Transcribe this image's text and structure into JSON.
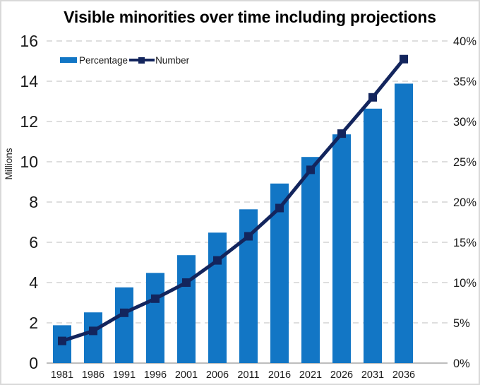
{
  "chart_data": {
    "type": "bar-line-combo",
    "title": "Visible minorities over time including projections",
    "categories": [
      "1981",
      "1986",
      "1991",
      "1996",
      "2001",
      "2006",
      "2011",
      "2016",
      "2021",
      "2026",
      "2031",
      "2036"
    ],
    "series": [
      {
        "name": "Percentage",
        "type": "bar",
        "axis": "right",
        "unit": "percent",
        "values": [
          4.7,
          6.3,
          9.4,
          11.2,
          13.4,
          16.2,
          19.1,
          22.3,
          25.6,
          28.4,
          31.6,
          34.7
        ]
      },
      {
        "name": "Number",
        "type": "line",
        "axis": "left",
        "unit": "millions",
        "values": [
          1.1,
          1.6,
          2.5,
          3.2,
          4.0,
          5.1,
          6.3,
          7.7,
          9.6,
          11.4,
          13.2,
          15.1
        ]
      }
    ],
    "left_axis": {
      "label": "Millions",
      "min": 0,
      "max": 16,
      "step": 2
    },
    "right_axis": {
      "label": "",
      "min": 0,
      "max": 40,
      "step": 5,
      "suffix": "%"
    },
    "legend": {
      "position": "top-left",
      "entries": [
        "Percentage",
        "Number"
      ]
    },
    "grid": {
      "horizontal": "dashed",
      "vertical": "none"
    },
    "colors": {
      "bar": "#1276c5",
      "line": "#13255d",
      "grid": "#d9d9d9",
      "axis_line": "#bfbfbf",
      "tick_text": "#1a1a1a",
      "title_text": "#000000"
    }
  }
}
